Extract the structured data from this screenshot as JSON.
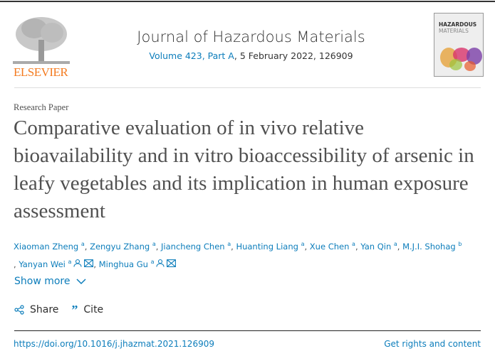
{
  "publisher": {
    "name": "ELSEVIER",
    "brand_color": "#f47b20"
  },
  "journal": {
    "title": "Journal of Hazardous Materials",
    "volume_link": "Volume 423, Part A",
    "date_issue": ", 5 February 2022, 126909",
    "cover_title_line1": "HAZARDOUS",
    "cover_title_line2": "MATERIALS"
  },
  "article": {
    "type": "Research Paper",
    "title": "Comparative evaluation of in vivo relative bioavailability and in vitro bioaccessibility of arsenic in leafy vegetables and its implication in human exposure assessment",
    "authors": [
      {
        "name": "Xiaoman Zheng",
        "aff": "a",
        "prefix": ""
      },
      {
        "name": "Zengyu Zhang",
        "aff": "a",
        "prefix": ", "
      },
      {
        "name": "Jiancheng Chen",
        "aff": "a",
        "prefix": ", "
      },
      {
        "name": "Huanting Liang",
        "aff": "a",
        "prefix": ", "
      },
      {
        "name": "Xue Chen",
        "aff": "a",
        "prefix": ", "
      },
      {
        "name": "Yan Qin",
        "aff": "a",
        "prefix": ", "
      },
      {
        "name": "M.J.I. Shohag",
        "aff": "b",
        "prefix": ", "
      },
      {
        "name": "Yanyan Wei",
        "aff": "a",
        "prefix": " , ",
        "icons": true
      },
      {
        "name": "Minghua Gu",
        "aff": "a",
        "prefix": ", ",
        "icons": true
      }
    ],
    "show_more": "Show more",
    "share": "Share",
    "cite": "Cite",
    "doi": "https://doi.org/10.1016/j.jhazmat.2021.126909",
    "rights": "Get rights and content"
  },
  "colors": {
    "link": "#0c7dbb",
    "text": "#505050"
  }
}
